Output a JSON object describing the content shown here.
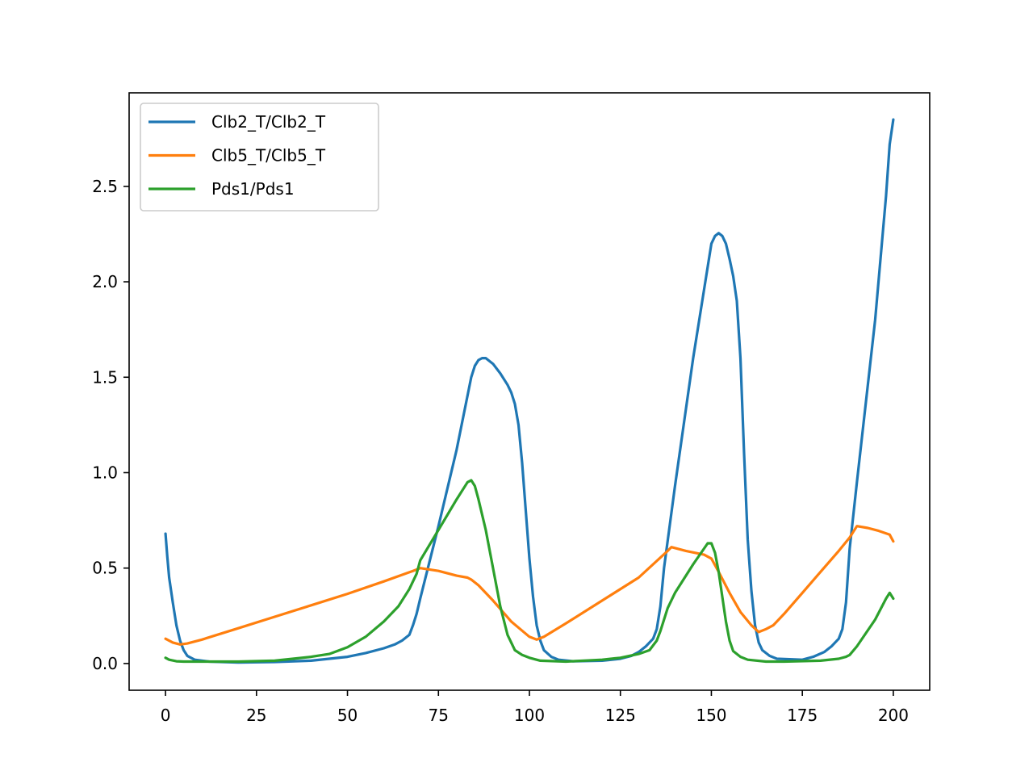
{
  "chart_data": {
    "type": "line",
    "title": "",
    "xlabel": "",
    "ylabel": "",
    "xlim": [
      -10,
      210
    ],
    "ylim": [
      -0.14,
      2.99
    ],
    "xticks": [
      0,
      25,
      50,
      75,
      100,
      125,
      150,
      175,
      200
    ],
    "xtick_labels": [
      "0",
      "25",
      "50",
      "75",
      "100",
      "125",
      "150",
      "175",
      "200"
    ],
    "yticks": [
      0.0,
      0.5,
      1.0,
      1.5,
      2.0,
      2.5
    ],
    "ytick_labels": [
      "0.0",
      "0.5",
      "1.0",
      "1.5",
      "2.0",
      "2.5"
    ],
    "grid": false,
    "legend": "top-left",
    "series": [
      {
        "name": "Clb2_T/Clb2_T",
        "color": "#1f77b4",
        "points": [
          [
            0,
            0.68
          ],
          [
            0.5,
            0.56
          ],
          [
            1,
            0.45
          ],
          [
            2,
            0.32
          ],
          [
            3,
            0.2
          ],
          [
            4,
            0.12
          ],
          [
            5,
            0.07
          ],
          [
            6,
            0.04
          ],
          [
            8,
            0.02
          ],
          [
            12,
            0.01
          ],
          [
            20,
            0.005
          ],
          [
            30,
            0.008
          ],
          [
            40,
            0.015
          ],
          [
            50,
            0.035
          ],
          [
            55,
            0.055
          ],
          [
            60,
            0.08
          ],
          [
            63,
            0.1
          ],
          [
            65,
            0.12
          ],
          [
            67,
            0.15
          ],
          [
            68,
            0.2
          ],
          [
            69,
            0.26
          ],
          [
            70,
            0.34
          ],
          [
            75,
            0.72
          ],
          [
            80,
            1.12
          ],
          [
            84,
            1.5
          ],
          [
            85,
            1.56
          ],
          [
            86,
            1.59
          ],
          [
            87,
            1.6
          ],
          [
            88,
            1.6
          ],
          [
            90,
            1.57
          ],
          [
            92,
            1.52
          ],
          [
            94,
            1.46
          ],
          [
            95,
            1.42
          ],
          [
            96,
            1.36
          ],
          [
            97,
            1.25
          ],
          [
            98,
            1.05
          ],
          [
            99,
            0.8
          ],
          [
            100,
            0.55
          ],
          [
            101,
            0.35
          ],
          [
            102,
            0.2
          ],
          [
            103,
            0.12
          ],
          [
            104,
            0.07
          ],
          [
            106,
            0.035
          ],
          [
            108,
            0.02
          ],
          [
            112,
            0.012
          ],
          [
            120,
            0.015
          ],
          [
            125,
            0.025
          ],
          [
            128,
            0.04
          ],
          [
            130,
            0.06
          ],
          [
            132,
            0.09
          ],
          [
            134,
            0.13
          ],
          [
            135,
            0.18
          ],
          [
            136,
            0.3
          ],
          [
            137,
            0.5
          ],
          [
            140,
            0.93
          ],
          [
            145,
            1.6
          ],
          [
            150,
            2.2
          ],
          [
            151,
            2.24
          ],
          [
            152,
            2.255
          ],
          [
            153,
            2.24
          ],
          [
            154,
            2.2
          ],
          [
            155,
            2.12
          ],
          [
            156,
            2.03
          ],
          [
            157,
            1.9
          ],
          [
            158,
            1.6
          ],
          [
            159,
            1.1
          ],
          [
            160,
            0.65
          ],
          [
            161,
            0.38
          ],
          [
            162,
            0.2
          ],
          [
            163,
            0.11
          ],
          [
            164,
            0.07
          ],
          [
            166,
            0.04
          ],
          [
            168,
            0.025
          ],
          [
            175,
            0.02
          ],
          [
            178,
            0.035
          ],
          [
            181,
            0.06
          ],
          [
            183,
            0.09
          ],
          [
            185,
            0.13
          ],
          [
            186,
            0.18
          ],
          [
            187,
            0.32
          ],
          [
            188,
            0.6
          ],
          [
            190,
            0.95
          ],
          [
            195,
            1.8
          ],
          [
            198,
            2.45
          ],
          [
            199,
            2.72
          ],
          [
            200,
            2.85
          ]
        ]
      },
      {
        "name": "Clb5_T/Clb5_T",
        "color": "#ff7f0e",
        "points": [
          [
            0,
            0.13
          ],
          [
            2,
            0.11
          ],
          [
            4,
            0.1
          ],
          [
            6,
            0.105
          ],
          [
            10,
            0.125
          ],
          [
            20,
            0.185
          ],
          [
            30,
            0.245
          ],
          [
            40,
            0.305
          ],
          [
            50,
            0.365
          ],
          [
            60,
            0.43
          ],
          [
            68,
            0.485
          ],
          [
            70,
            0.5
          ],
          [
            75,
            0.485
          ],
          [
            80,
            0.46
          ],
          [
            83,
            0.45
          ],
          [
            84,
            0.44
          ],
          [
            86,
            0.41
          ],
          [
            90,
            0.33
          ],
          [
            95,
            0.22
          ],
          [
            100,
            0.14
          ],
          [
            102,
            0.125
          ],
          [
            104,
            0.14
          ],
          [
            110,
            0.21
          ],
          [
            120,
            0.33
          ],
          [
            130,
            0.45
          ],
          [
            138,
            0.59
          ],
          [
            139,
            0.61
          ],
          [
            143,
            0.59
          ],
          [
            148,
            0.57
          ],
          [
            150,
            0.55
          ],
          [
            152,
            0.48
          ],
          [
            155,
            0.37
          ],
          [
            158,
            0.27
          ],
          [
            161,
            0.2
          ],
          [
            163,
            0.165
          ],
          [
            165,
            0.18
          ],
          [
            167,
            0.2
          ],
          [
            170,
            0.26
          ],
          [
            175,
            0.37
          ],
          [
            180,
            0.48
          ],
          [
            185,
            0.59
          ],
          [
            188,
            0.66
          ],
          [
            190,
            0.72
          ],
          [
            193,
            0.71
          ],
          [
            196,
            0.695
          ],
          [
            199,
            0.675
          ],
          [
            200,
            0.64
          ]
        ]
      },
      {
        "name": "Pds1/Pds1",
        "color": "#2ca02c",
        "points": [
          [
            0,
            0.03
          ],
          [
            1,
            0.02
          ],
          [
            3,
            0.012
          ],
          [
            5,
            0.01
          ],
          [
            10,
            0.01
          ],
          [
            20,
            0.01
          ],
          [
            30,
            0.015
          ],
          [
            40,
            0.035
          ],
          [
            45,
            0.05
          ],
          [
            50,
            0.085
          ],
          [
            55,
            0.14
          ],
          [
            60,
            0.22
          ],
          [
            64,
            0.3
          ],
          [
            67,
            0.39
          ],
          [
            69,
            0.47
          ],
          [
            70,
            0.54
          ],
          [
            75,
            0.7
          ],
          [
            80,
            0.86
          ],
          [
            83,
            0.95
          ],
          [
            84,
            0.96
          ],
          [
            85,
            0.93
          ],
          [
            86,
            0.86
          ],
          [
            88,
            0.7
          ],
          [
            90,
            0.5
          ],
          [
            92,
            0.3
          ],
          [
            94,
            0.15
          ],
          [
            96,
            0.07
          ],
          [
            98,
            0.045
          ],
          [
            100,
            0.03
          ],
          [
            103,
            0.015
          ],
          [
            110,
            0.01
          ],
          [
            120,
            0.02
          ],
          [
            125,
            0.03
          ],
          [
            130,
            0.05
          ],
          [
            133,
            0.07
          ],
          [
            135,
            0.12
          ],
          [
            136,
            0.17
          ],
          [
            137,
            0.23
          ],
          [
            138,
            0.29
          ],
          [
            140,
            0.37
          ],
          [
            145,
            0.52
          ],
          [
            149,
            0.63
          ],
          [
            150,
            0.63
          ],
          [
            151,
            0.58
          ],
          [
            152,
            0.48
          ],
          [
            153,
            0.35
          ],
          [
            154,
            0.22
          ],
          [
            155,
            0.12
          ],
          [
            156,
            0.065
          ],
          [
            158,
            0.035
          ],
          [
            160,
            0.02
          ],
          [
            165,
            0.01
          ],
          [
            170,
            0.01
          ],
          [
            180,
            0.015
          ],
          [
            185,
            0.025
          ],
          [
            187,
            0.035
          ],
          [
            188,
            0.045
          ],
          [
            190,
            0.09
          ],
          [
            195,
            0.23
          ],
          [
            198,
            0.34
          ],
          [
            199,
            0.37
          ],
          [
            200,
            0.34
          ]
        ]
      }
    ]
  }
}
